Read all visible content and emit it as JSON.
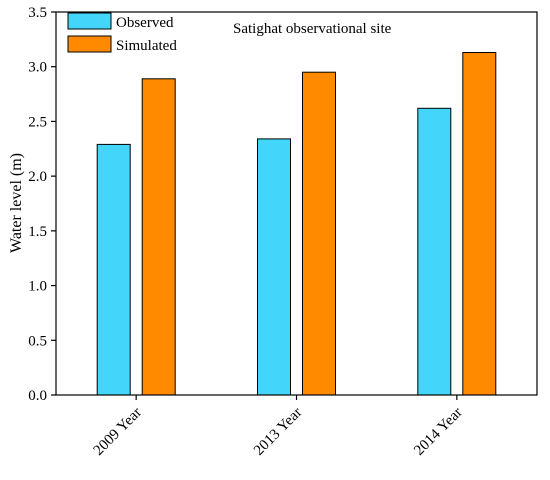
{
  "chart_data": {
    "type": "bar",
    "title": "Satighat observational site",
    "xlabel": "",
    "ylabel": "Water level (m)",
    "categories": [
      "2009 Year",
      "2013 Year",
      "2014 Year"
    ],
    "series": [
      {
        "name": "Observed",
        "color": "#44d6fa",
        "values": [
          2.29,
          2.34,
          2.62
        ]
      },
      {
        "name": "Simulated",
        "color": "#ff8a00",
        "values": [
          2.89,
          2.95,
          3.13
        ]
      }
    ],
    "ylim": [
      0,
      3.5
    ],
    "yticks": [
      "0.0",
      "0.5",
      "1.0",
      "1.5",
      "2.0",
      "2.5",
      "3.0",
      "3.5"
    ],
    "legend": "top-left",
    "grid": false
  }
}
